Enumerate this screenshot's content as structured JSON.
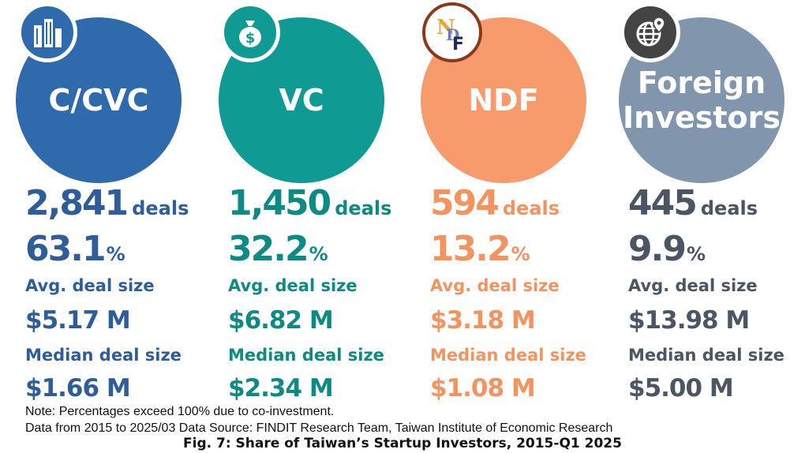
{
  "chart_data": {
    "type": "table",
    "title": "Fig. 7: Share of Taiwan’s Startup Investors, 2015-Q1 2025",
    "categories": [
      "C/CVC",
      "VC",
      "NDF",
      "Foreign Investors"
    ],
    "series": [
      {
        "name": "deals",
        "values": [
          2841,
          1450,
          594,
          445
        ]
      },
      {
        "name": "%",
        "values": [
          63.1,
          32.2,
          13.2,
          9.9
        ]
      },
      {
        "name": "Avg. deal size",
        "values": [
          5.17,
          6.82,
          3.18,
          13.98
        ]
      },
      {
        "name": "Median deal size",
        "values": [
          1.66,
          2.34,
          1.08,
          5.0
        ]
      }
    ]
  },
  "colors": {
    "c_cvc": "#2e6aac",
    "vc": "#0f9a94",
    "ndf": "#f39263",
    "foreign": "#7d93ad",
    "badge": "#444444"
  },
  "investors": [
    {
      "name": "C/CVC",
      "icon": "building-icon",
      "color": "#2e6aac",
      "text_color": "#2e5d9a",
      "deals": "2,841",
      "deals_unit": "deals",
      "share": "63.1",
      "share_unit": "%",
      "avg_label": "Avg. deal size",
      "avg": "$5.17 M",
      "median_label": "Median deal size",
      "median": "$1.66 M"
    },
    {
      "name": "VC",
      "icon": "money-bag-icon",
      "color": "#0f9a94",
      "text_color": "#0d8a83",
      "deals": "1,450",
      "deals_unit": "deals",
      "share": "32.2",
      "share_unit": "%",
      "avg_label": "Avg. deal size",
      "avg": "$6.82 M",
      "median_label": "Median deal size",
      "median": "$2.34 M"
    },
    {
      "name": "NDF",
      "icon": "ndf-logo-icon",
      "color": "#f79a6c",
      "text_color": "#f3935f",
      "deals": "594",
      "deals_unit": "deals",
      "share": "13.2",
      "share_unit": "%",
      "avg_label": "Avg. deal size",
      "avg": "$3.18 M",
      "median_label": "Median deal size",
      "median": "$1.08 M"
    },
    {
      "name": "Foreign Investors",
      "name_line1": "Foreign",
      "name_line2": "Investors",
      "icon": "globe-pin-icon",
      "color": "#8195ac",
      "text_color": "#4b5563",
      "deals": "445",
      "deals_unit": "deals",
      "share": "9.9",
      "share_unit": "%",
      "avg_label": "Avg. deal size",
      "avg": "$13.98 M",
      "median_label": "Median deal size",
      "median": "$5.00 M"
    }
  ],
  "notes": {
    "line1": "Note: Percentages exceed 100% due to co-investment.",
    "line2": "Data from 2015 to 2025/03 Data Source: FINDIT Research Team, Taiwan Institute of Economic Research"
  },
  "caption": "Fig. 7: Share of Taiwan’s Startup Investors, 2015-Q1 2025"
}
